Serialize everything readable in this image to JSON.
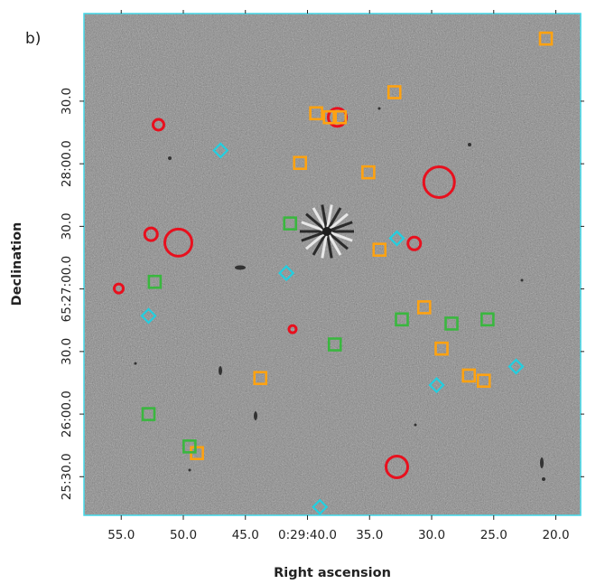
{
  "chart_data": {
    "type": "scatter",
    "title": "",
    "panel_label": "b)",
    "xlabel": "Right ascension",
    "ylabel": "Declination",
    "x_ticks": [
      "55.0",
      "50.0",
      "45.0",
      "0:29:40.0",
      "35.0",
      "30.0",
      "25.0",
      "20.0"
    ],
    "x_tick_seconds": [
      55,
      50,
      45,
      40,
      35,
      30,
      25,
      20
    ],
    "xlim_seconds": [
      58.0,
      18.0
    ],
    "y_ticks": [
      "25:30.0",
      "26:00.0",
      "30.0",
      "65:27:00.0",
      "30.0",
      "28:00.0",
      "30.0"
    ],
    "y_tick_offsets_arcsec": [
      0,
      30,
      60,
      90,
      120,
      150,
      180
    ],
    "ylim_arcsec": [
      -18.5,
      222
    ],
    "series": [
      {
        "name": "red circles",
        "color": "#e8101e",
        "marker": "circle",
        "points": [
          {
            "ra_s": 37.6,
            "dec_arcsec": 172.3,
            "size": 10
          },
          {
            "ra_s": 52.0,
            "dec_arcsec": 168.7,
            "size": 6
          },
          {
            "ra_s": 29.4,
            "dec_arcsec": 141.2,
            "size": 17
          },
          {
            "ra_s": 52.6,
            "dec_arcsec": 116.2,
            "size": 7
          },
          {
            "ra_s": 50.4,
            "dec_arcsec": 112.2,
            "size": 15
          },
          {
            "ra_s": 31.4,
            "dec_arcsec": 111.8,
            "size": 7
          },
          {
            "ra_s": 55.2,
            "dec_arcsec": 90.2,
            "size": 5
          },
          {
            "ra_s": 41.2,
            "dec_arcsec": 70.7,
            "size": 4
          },
          {
            "ra_s": 32.8,
            "dec_arcsec": 4.7,
            "size": 12
          }
        ]
      },
      {
        "name": "orange squares",
        "color": "#ffa210",
        "marker": "square",
        "points": [
          {
            "ra_s": 20.8,
            "dec_arcsec": 210.0
          },
          {
            "ra_s": 33.0,
            "dec_arcsec": 184.3
          },
          {
            "ra_s": 39.3,
            "dec_arcsec": 174.2
          },
          {
            "ra_s": 38.2,
            "dec_arcsec": 172.3
          },
          {
            "ra_s": 37.4,
            "dec_arcsec": 172.3
          },
          {
            "ra_s": 40.6,
            "dec_arcsec": 150.4
          },
          {
            "ra_s": 35.1,
            "dec_arcsec": 145.9
          },
          {
            "ra_s": 34.2,
            "dec_arcsec": 108.8
          },
          {
            "ra_s": 30.6,
            "dec_arcsec": 81.2
          },
          {
            "ra_s": 29.2,
            "dec_arcsec": 61.4
          },
          {
            "ra_s": 27.0,
            "dec_arcsec": 48.5
          },
          {
            "ra_s": 25.8,
            "dec_arcsec": 46.0
          },
          {
            "ra_s": 43.8,
            "dec_arcsec": 47.3
          },
          {
            "ra_s": 48.9,
            "dec_arcsec": 11.3
          }
        ]
      },
      {
        "name": "green squares",
        "color": "#3ab73f",
        "marker": "square",
        "points": [
          {
            "ra_s": 41.4,
            "dec_arcsec": 121.4
          },
          {
            "ra_s": 52.3,
            "dec_arcsec": 93.4
          },
          {
            "ra_s": 32.4,
            "dec_arcsec": 75.4
          },
          {
            "ra_s": 28.4,
            "dec_arcsec": 73.4
          },
          {
            "ra_s": 25.5,
            "dec_arcsec": 75.4
          },
          {
            "ra_s": 37.8,
            "dec_arcsec": 63.4
          },
          {
            "ra_s": 52.8,
            "dec_arcsec": 30.0
          },
          {
            "ra_s": 49.5,
            "dec_arcsec": 14.5
          }
        ]
      },
      {
        "name": "cyan diamonds",
        "color": "#22cfe0",
        "marker": "diamond",
        "points": [
          {
            "ra_s": 47.0,
            "dec_arcsec": 156.4
          },
          {
            "ra_s": 32.8,
            "dec_arcsec": 114.3
          },
          {
            "ra_s": 41.7,
            "dec_arcsec": 97.6
          },
          {
            "ra_s": 52.8,
            "dec_arcsec": 77.1
          },
          {
            "ra_s": 23.2,
            "dec_arcsec": 52.8
          },
          {
            "ra_s": 29.6,
            "dec_arcsec": 43.9
          },
          {
            "ra_s": 39.0,
            "dec_arcsec": -14.5
          }
        ]
      }
    ],
    "grid": false,
    "legend": "none"
  }
}
